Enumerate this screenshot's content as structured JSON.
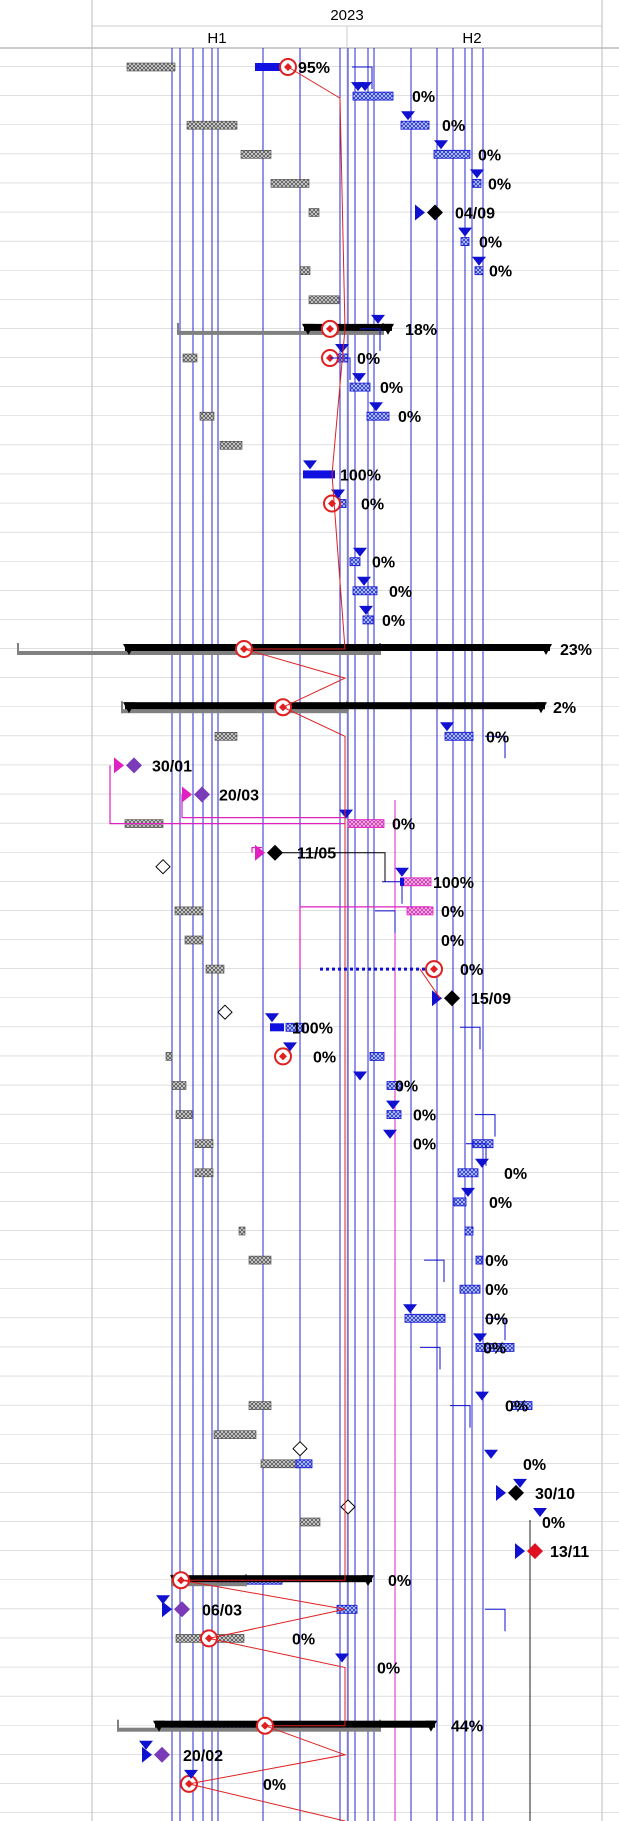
{
  "header": {
    "year": "2023",
    "halves": [
      "H1",
      "H2"
    ]
  },
  "colors": {
    "summary_bar": "#000000",
    "baseline": "#808080",
    "task_pattern": "#9a9a9a",
    "link_blue": "#1010d0",
    "link_red": "#e02020",
    "link_magenta": "#e020c0",
    "milestone_purple": "#7b3bb8",
    "milestone_magenta": "#e020c0",
    "milestone_red": "#e01020",
    "progress_blue": "#1010e0",
    "task_blue_fill": "#8fa8ff",
    "task_pink_fill": "#f090d8",
    "grid": "#cccccc"
  },
  "chart_data": {
    "type": "gantt",
    "timescale": {
      "year": "2023",
      "halves": [
        "H1",
        "H2"
      ]
    },
    "rows": [
      {
        "row": 0,
        "kind": "task",
        "label": "95%",
        "progress": 95
      },
      {
        "row": 1,
        "kind": "task",
        "label": "0%",
        "progress": 0
      },
      {
        "row": 2,
        "kind": "task",
        "label": "0%",
        "progress": 0
      },
      {
        "row": 3,
        "kind": "task",
        "label": "0%",
        "progress": 0
      },
      {
        "row": 4,
        "kind": "task",
        "label": "0%",
        "progress": 0
      },
      {
        "row": 5,
        "kind": "milestone",
        "label": "04/09"
      },
      {
        "row": 6,
        "kind": "task",
        "label": "0%",
        "progress": 0
      },
      {
        "row": 7,
        "kind": "task",
        "label": "0%",
        "progress": 0
      },
      {
        "row": 9,
        "kind": "summary",
        "label": "18%",
        "progress": 18
      },
      {
        "row": 10,
        "kind": "task",
        "label": "0%",
        "progress": 0
      },
      {
        "row": 11,
        "kind": "task",
        "label": "0%",
        "progress": 0
      },
      {
        "row": 12,
        "kind": "task",
        "label": "0%",
        "progress": 0
      },
      {
        "row": 14,
        "kind": "task",
        "label": "100%",
        "progress": 100
      },
      {
        "row": 15,
        "kind": "task",
        "label": "0%",
        "progress": 0
      },
      {
        "row": 17,
        "kind": "task",
        "label": "0%",
        "progress": 0
      },
      {
        "row": 18,
        "kind": "summary",
        "label": "0%",
        "progress": 0
      },
      {
        "row": 19,
        "kind": "task",
        "label": "0%",
        "progress": 0
      },
      {
        "row": 20,
        "kind": "summary",
        "label": "23%",
        "progress": 23
      },
      {
        "row": 22,
        "kind": "summary",
        "label": "2%",
        "progress": 2
      },
      {
        "row": 23,
        "kind": "task",
        "label": "0%",
        "progress": 0
      },
      {
        "row": 24,
        "kind": "milestone",
        "label": "30/01"
      },
      {
        "row": 25,
        "kind": "milestone",
        "label": "20/03"
      },
      {
        "row": 26,
        "kind": "task",
        "label": "0%",
        "progress": 0
      },
      {
        "row": 27,
        "kind": "milestone",
        "label": "11/05"
      },
      {
        "row": 28,
        "kind": "task",
        "label": "100%",
        "progress": 100
      },
      {
        "row": 29,
        "kind": "task",
        "label": "0%",
        "progress": 0
      },
      {
        "row": 30,
        "kind": "task",
        "label": "0%",
        "progress": 0
      },
      {
        "row": 31,
        "kind": "task",
        "label": "0%",
        "progress": 0
      },
      {
        "row": 32,
        "kind": "milestone",
        "label": "15/09"
      },
      {
        "row": 33,
        "kind": "task",
        "label": "100%",
        "progress": 100
      },
      {
        "row": 34,
        "kind": "task",
        "label": "0%",
        "progress": 0
      },
      {
        "row": 35,
        "kind": "task",
        "label": "0%",
        "progress": 0
      },
      {
        "row": 36,
        "kind": "task",
        "label": "0%",
        "progress": 0
      },
      {
        "row": 37,
        "kind": "task",
        "label": "0%",
        "progress": 0
      },
      {
        "row": 38,
        "kind": "task",
        "label": "0%",
        "progress": 0
      },
      {
        "row": 39,
        "kind": "task",
        "label": "0%",
        "progress": 0
      },
      {
        "row": 41,
        "kind": "task",
        "label": "0%",
        "progress": 0
      },
      {
        "row": 42,
        "kind": "task",
        "label": "0%",
        "progress": 0
      },
      {
        "row": 43,
        "kind": "task",
        "label": "0%",
        "progress": 0
      },
      {
        "row": 44,
        "kind": "task",
        "label": "0%",
        "progress": 0
      },
      {
        "row": 46,
        "kind": "task",
        "label": "0%",
        "progress": 0
      },
      {
        "row": 48,
        "kind": "task",
        "label": "0%",
        "progress": 0
      },
      {
        "row": 49,
        "kind": "milestone",
        "label": "30/10"
      },
      {
        "row": 50,
        "kind": "task",
        "label": "0%",
        "progress": 0
      },
      {
        "row": 51,
        "kind": "milestone",
        "label": "13/11"
      },
      {
        "row": 52,
        "kind": "summary",
        "label": "0%",
        "progress": 0
      },
      {
        "row": 53,
        "kind": "milestone",
        "label": "06/03"
      },
      {
        "row": 54,
        "kind": "task",
        "label": "0%",
        "progress": 0
      },
      {
        "row": 55,
        "kind": "task",
        "label": "0%",
        "progress": 0
      },
      {
        "row": 57,
        "kind": "summary",
        "label": "44%",
        "progress": 44
      },
      {
        "row": 58,
        "kind": "milestone",
        "label": "20/02"
      },
      {
        "row": 59,
        "kind": "task",
        "label": "0%",
        "progress": 0
      }
    ]
  }
}
